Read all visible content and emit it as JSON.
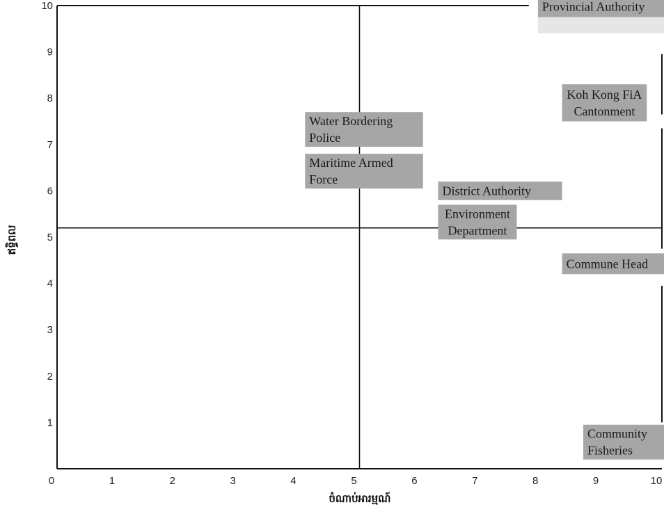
{
  "chart_data": {
    "type": "scatter",
    "title": "",
    "xlabel": "ចំណាប់អារម្មណ៍",
    "ylabel": "ឥទ្ធិពល",
    "xlim": [
      0,
      10
    ],
    "ylim": [
      0,
      10
    ],
    "x_ticks": [
      "0",
      "1",
      "2",
      "3",
      "4",
      "5",
      "6",
      "7",
      "8",
      "9",
      "10"
    ],
    "y_ticks": [
      "1",
      "2",
      "3",
      "4",
      "5",
      "6",
      "7",
      "8",
      "9",
      "10"
    ],
    "grid": false,
    "quadrant_lines": {
      "x": 5,
      "y": 5.2
    },
    "box_color": "#a6a6a6",
    "points": [
      {
        "label": [
          "Provincial Authority"
        ],
        "x": 9.1,
        "y": 9.8,
        "align": "start",
        "x0": 7.95,
        "x1": 10.1,
        "y0": 9.75,
        "y1": 10.2,
        "extra_y0": 9.4
      },
      {
        "label": [
          "Koh Kong FiA",
          "Cantonment"
        ],
        "x": 9.05,
        "y": 7.8,
        "align": "middle",
        "x0": 8.35,
        "x1": 9.75,
        "y0": 7.5,
        "y1": 8.3
      },
      {
        "label": [
          "Water Bordering",
          "Police"
        ],
        "x": 5.2,
        "y": 7.2,
        "align": "start",
        "x0": 4.1,
        "x1": 6.05,
        "y0": 6.95,
        "y1": 7.7
      },
      {
        "label": [
          "Maritime Armed",
          "Force"
        ],
        "x": 5.2,
        "y": 6.3,
        "align": "start",
        "x0": 4.1,
        "x1": 6.05,
        "y0": 6.05,
        "y1": 6.8
      },
      {
        "label": [
          "District Authority"
        ],
        "x": 7.4,
        "y": 5.9,
        "align": "start",
        "x0": 6.3,
        "x1": 8.35,
        "y0": 5.8,
        "y1": 6.2
      },
      {
        "label": [
          "Environment",
          "Department"
        ],
        "x": 7.0,
        "y": 5.1,
        "align": "middle",
        "x0": 6.3,
        "x1": 7.6,
        "y0": 4.95,
        "y1": 5.7
      },
      {
        "label": [
          "Commune Head"
        ],
        "x": 9.0,
        "y": 4.4,
        "align": "start",
        "x0": 8.35,
        "x1": 10.05,
        "y0": 4.2,
        "y1": 4.65
      },
      {
        "label": [
          "Community",
          "Fisheries"
        ],
        "x": 9.05,
        "y": 0.6,
        "align": "start",
        "x0": 8.7,
        "x1": 10.05,
        "y0": 0.2,
        "y1": 0.95
      }
    ]
  }
}
